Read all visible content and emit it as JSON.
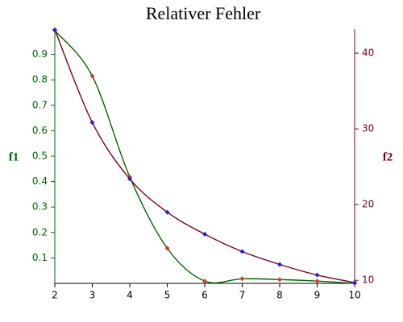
{
  "chart_data": {
    "type": "line",
    "title": "Relativer Fehler",
    "ylabel": "f1",
    "y2label": "f2",
    "x": [
      2,
      3,
      4,
      5,
      6,
      7,
      8,
      9,
      10
    ],
    "xlim": [
      2,
      10
    ],
    "xticks": [
      2,
      3,
      4,
      5,
      6,
      7,
      8,
      9,
      10
    ],
    "ylim": [
      0,
      1.0
    ],
    "yticks": [
      0.1,
      0.2,
      0.3,
      0.4,
      0.5,
      0.6,
      0.7,
      0.8,
      0.9
    ],
    "y2lim": [
      9.6,
      43.2
    ],
    "y2ticks": [
      10,
      20,
      30,
      40
    ],
    "yaxis_color": "#006400",
    "y2axis_color": "#7a0020",
    "smooth": true,
    "series": [
      {
        "color": "#006400",
        "marker_color": "#d04020",
        "values": [
          0.994,
          0.815,
          0.418,
          0.138,
          0.009,
          0.018,
          0.015,
          0.009,
          0.0
        ]
      },
      {
        "color": "#7a0020",
        "marker_color": "#2020e0",
        "axis": "y2",
        "values": [
          43.1,
          30.85,
          23.4,
          19.0,
          16.1,
          13.8,
          12.1,
          10.7,
          9.7
        ]
      }
    ]
  }
}
